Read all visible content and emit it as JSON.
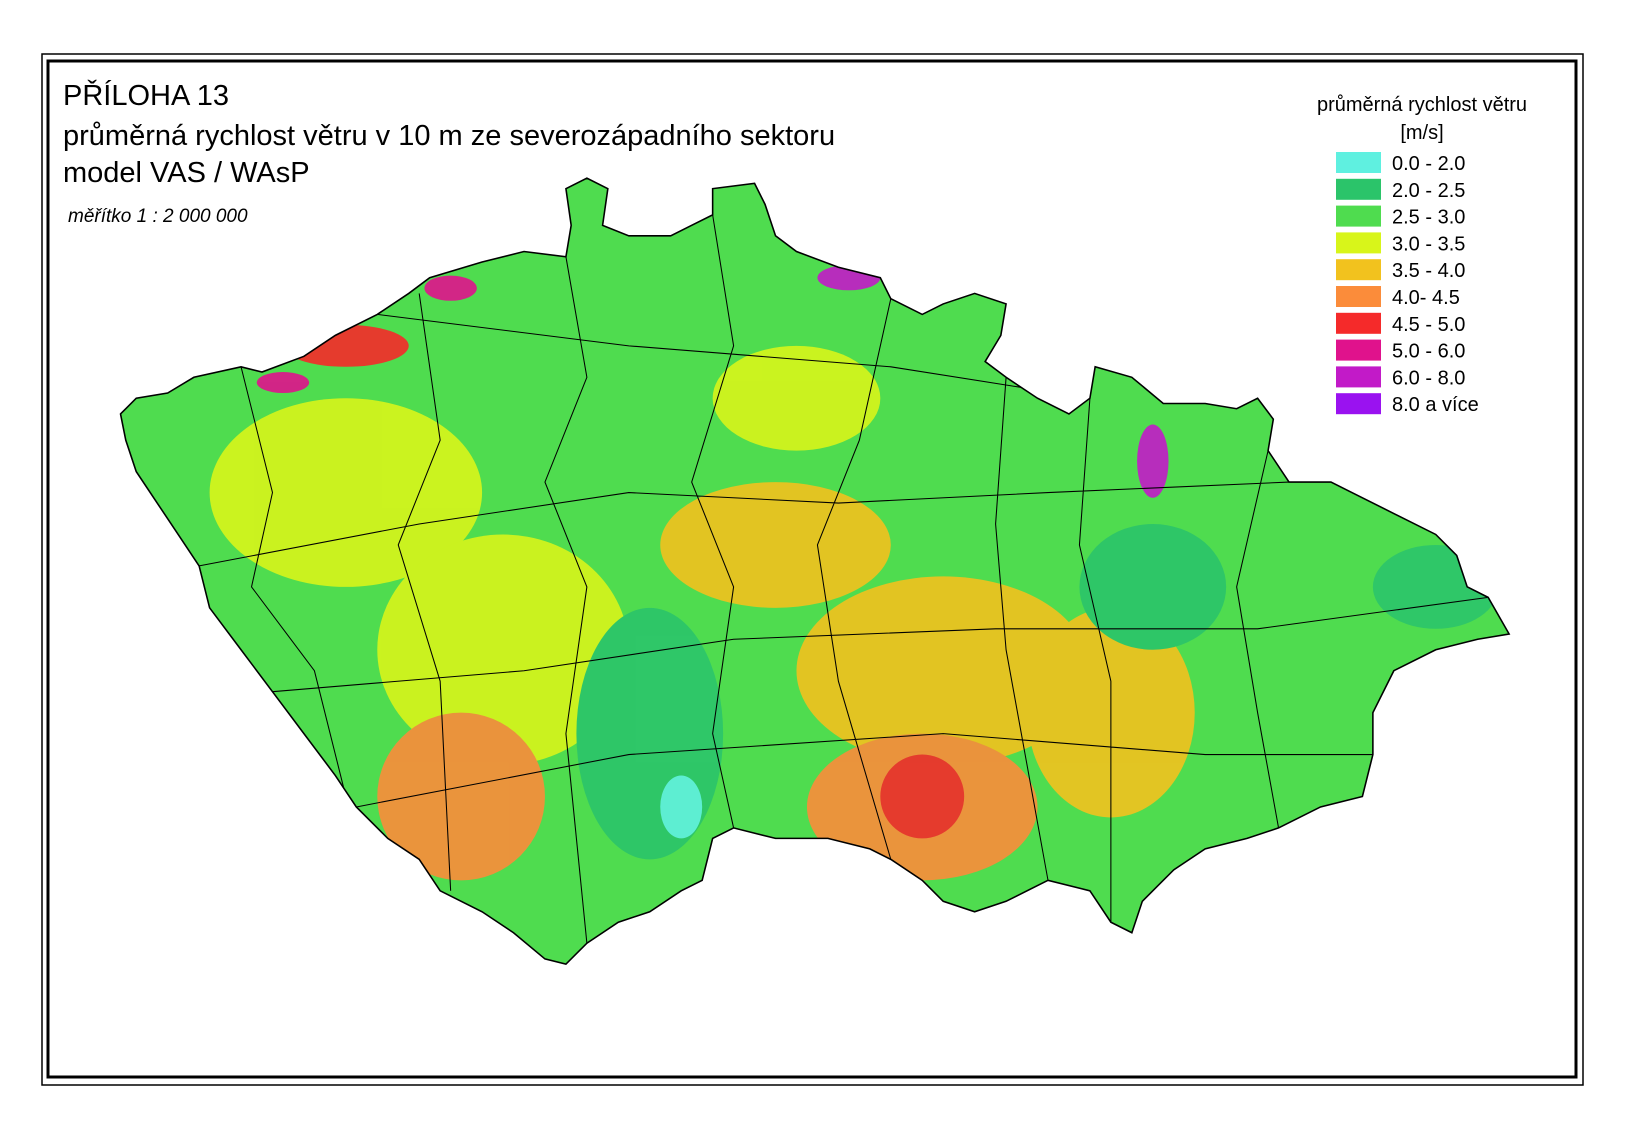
{
  "header": {
    "title": "PŘÍLOHA 13",
    "subtitle": "průměrná rychlost větru v 10 m ze severozápadního sektoru",
    "model": "model VAS / WAsP",
    "scale": "měřítko 1 : 2 000 000"
  },
  "legend": {
    "title": "průměrná rychlost větru",
    "unit": "[m/s]",
    "items": [
      {
        "label": "0.0 - 2.0",
        "color": "#5ff0e0"
      },
      {
        "label": "2.0 - 2.5",
        "color": "#2bc46a"
      },
      {
        "label": "2.5 - 3.0",
        "color": "#4fdc4f"
      },
      {
        "label": "3.0 - 3.5",
        "color": "#d8f51a"
      },
      {
        "label": "3.5 - 4.0",
        "color": "#f2c21e"
      },
      {
        "label": "4.0- 4.5",
        "color": "#fb8c3a"
      },
      {
        "label": "4.5 - 5.0",
        "color": "#f52a2a"
      },
      {
        "label": "5.0 - 6.0",
        "color": "#e0128c"
      },
      {
        "label": "6.0 - 8.0",
        "color": "#c21ac8"
      },
      {
        "label": "8.0 a více",
        "color": "#9a12f0"
      }
    ]
  }
}
